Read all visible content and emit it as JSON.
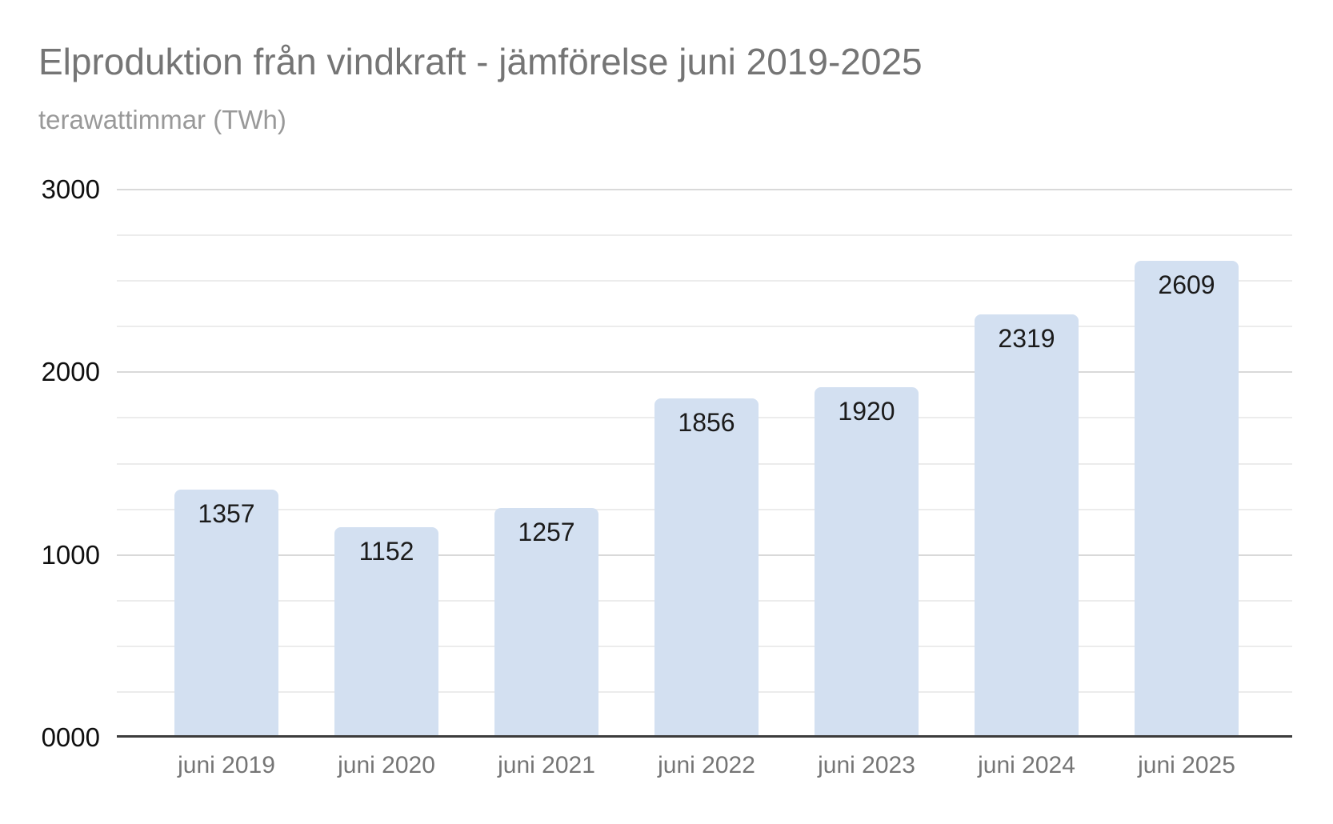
{
  "header": {
    "title": "Elproduktion från vindkraft - jämförelse juni 2019-2025",
    "subtitle": "terawattimmar (TWh)"
  },
  "chart_data": {
    "type": "bar",
    "title": "Elproduktion från vindkraft - jämförelse juni 2019-2025",
    "subtitle": "terawattimmar (TWh)",
    "unit": "TWh",
    "categories": [
      "juni 2019",
      "juni 2020",
      "juni 2021",
      "juni 2022",
      "juni 2023",
      "juni 2024",
      "juni 2025"
    ],
    "values": [
      1357,
      1152,
      1257,
      1856,
      1920,
      2319,
      2609
    ],
    "value_labels": [
      "1357",
      "1152",
      "1257",
      "1856",
      "1920",
      "2319",
      "2609"
    ],
    "ylim": [
      0,
      3000
    ],
    "y_ticks": [
      {
        "value": 0,
        "label": "0000"
      },
      {
        "value": 1000,
        "label": "1000"
      },
      {
        "value": 2000,
        "label": "2000"
      },
      {
        "value": 3000,
        "label": "3000"
      }
    ],
    "minor_grid_step": 250,
    "major_grid_step": 1000,
    "grid": true,
    "legend": "none",
    "colors": {
      "bar_fill": "#d3e0f1",
      "axis_line": "#3c3c3c",
      "major_gridline": "#d9d9d9",
      "minor_gridline": "#ececec",
      "title_text": "#757575",
      "subtitle_text": "#999999",
      "tick_text": "#0f0f0f",
      "category_text": "#757575",
      "value_label_text": "#1b1b1b",
      "background": "#ffffff"
    }
  }
}
